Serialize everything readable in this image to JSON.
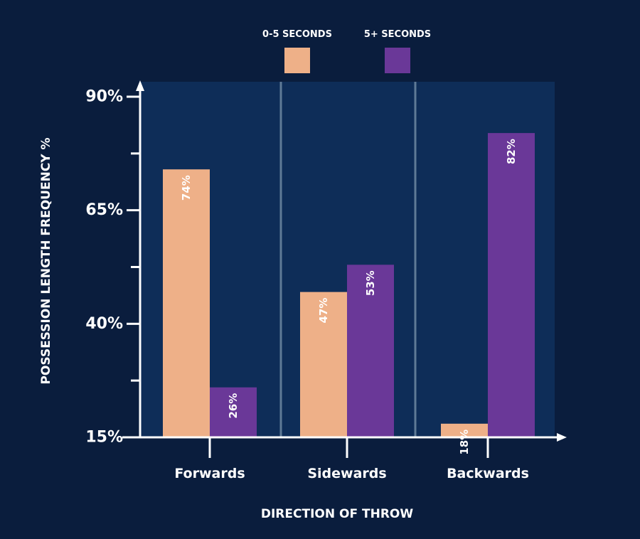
{
  "chart_data": {
    "type": "bar",
    "title": "",
    "xlabel": "DIRECTION OF THROW",
    "ylabel": "POSSESSION LENGTH FREQUENCY %",
    "categories": [
      "Forwards",
      "Sidewards",
      "Backwards"
    ],
    "series": [
      {
        "name": "0-5 SECONDS",
        "values": [
          74,
          47,
          18
        ],
        "labels": [
          "74%",
          "47%",
          "18%"
        ]
      },
      {
        "name": "5+ SECONDS",
        "values": [
          26,
          53,
          82
        ],
        "labels": [
          "26%",
          "53%",
          "82%"
        ]
      }
    ],
    "ylim": [
      15,
      90
    ],
    "yticks": [
      15,
      40,
      65,
      90
    ],
    "ytick_labels": [
      "15%",
      "40%",
      "65%",
      "90%"
    ],
    "legend": "top",
    "grid": false
  },
  "colors": {
    "background": "#0a1d3d",
    "plot_area": "#0e2d58",
    "series": [
      "#eeb088",
      "#6a3898"
    ],
    "divider": "#5f7a96",
    "axis": "#ffffff"
  }
}
